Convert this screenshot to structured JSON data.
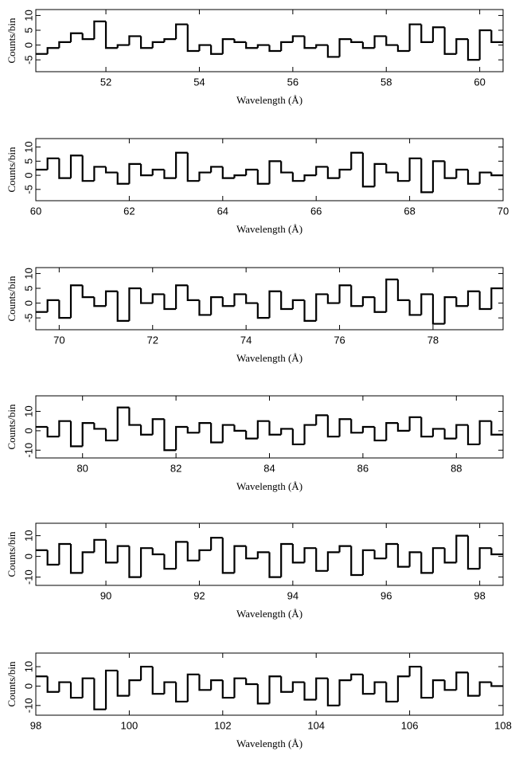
{
  "chart_data": [
    {
      "type": "histogram",
      "xlabel": "Wavelength (Å)",
      "ylabel": "Counts/bin",
      "xlim": [
        50.5,
        60.5
      ],
      "xticks": [
        52,
        54,
        56,
        58,
        60
      ],
      "ylim": [
        -9,
        12
      ],
      "yticks": [
        -5,
        0,
        5,
        10
      ],
      "color": "#000000",
      "bins": [
        50.5,
        50.75,
        51,
        51.25,
        51.5,
        51.75,
        52,
        52.25,
        52.5,
        52.75,
        53,
        53.25,
        53.5,
        53.75,
        54,
        54.25,
        54.5,
        54.75,
        55,
        55.25,
        55.5,
        55.75,
        56,
        56.25,
        56.5,
        56.75,
        57,
        57.25,
        57.5,
        57.75,
        58,
        58.25,
        58.5,
        58.75,
        59,
        59.25,
        59.5,
        59.75,
        60,
        60.25,
        60.5
      ],
      "values": [
        -3,
        -1,
        1,
        4,
        2,
        8,
        -1,
        0,
        3,
        -1,
        1,
        2,
        7,
        -2,
        0,
        -3,
        2,
        1,
        -1,
        0,
        -2,
        1,
        3,
        -1,
        0,
        -4,
        2,
        1,
        -1,
        3,
        0,
        -2,
        7,
        1,
        6,
        -3,
        2,
        -5,
        5,
        1
      ]
    },
    {
      "type": "histogram",
      "xlabel": "Wavelength (Å)",
      "ylabel": "Counts/bin",
      "xlim": [
        60,
        70
      ],
      "xticks": [
        60,
        62,
        64,
        66,
        68,
        70
      ],
      "ylim": [
        -9,
        13
      ],
      "yticks": [
        -5,
        0,
        5,
        10
      ],
      "color": "#000000",
      "bins": [
        60,
        60.25,
        60.5,
        60.75,
        61,
        61.25,
        61.5,
        61.75,
        62,
        62.25,
        62.5,
        62.75,
        63,
        63.25,
        63.5,
        63.75,
        64,
        64.25,
        64.5,
        64.75,
        65,
        65.25,
        65.5,
        65.75,
        66,
        66.25,
        66.5,
        66.75,
        67,
        67.25,
        67.5,
        67.75,
        68,
        68.25,
        68.5,
        68.75,
        69,
        69.25,
        69.5,
        69.75,
        70
      ],
      "values": [
        2,
        6,
        -1,
        7,
        -2,
        3,
        1,
        -3,
        4,
        0,
        2,
        -1,
        8,
        -2,
        1,
        3,
        -1,
        0,
        2,
        -3,
        5,
        1,
        -2,
        0,
        3,
        -1,
        2,
        8,
        -4,
        4,
        1,
        -2,
        6,
        -6,
        5,
        -1,
        2,
        -3,
        1,
        0
      ]
    },
    {
      "type": "histogram",
      "xlabel": "Wavelength (Å)",
      "ylabel": "Counts/bin",
      "xlim": [
        69.5,
        79.5
      ],
      "xticks": [
        70,
        72,
        74,
        76,
        78
      ],
      "ylim": [
        -9,
        12
      ],
      "yticks": [
        -5,
        0,
        5,
        10
      ],
      "color": "#000000",
      "bins": [
        69.5,
        69.75,
        70,
        70.25,
        70.5,
        70.75,
        71,
        71.25,
        71.5,
        71.75,
        72,
        72.25,
        72.5,
        72.75,
        73,
        73.25,
        73.5,
        73.75,
        74,
        74.25,
        74.5,
        74.75,
        75,
        75.25,
        75.5,
        75.75,
        76,
        76.25,
        76.5,
        76.75,
        77,
        77.25,
        77.5,
        77.75,
        78,
        78.25,
        78.5,
        78.75,
        79,
        79.25,
        79.5
      ],
      "values": [
        -3,
        1,
        -5,
        6,
        2,
        -1,
        4,
        -6,
        5,
        0,
        3,
        -2,
        6,
        1,
        -4,
        2,
        -1,
        3,
        0,
        -5,
        4,
        -2,
        1,
        -6,
        3,
        0,
        6,
        -1,
        2,
        -3,
        8,
        1,
        -4,
        3,
        -7,
        2,
        -1,
        4,
        -2,
        5
      ]
    },
    {
      "type": "histogram",
      "xlabel": "Wavelength (Å)",
      "ylabel": "Counts/bin",
      "xlim": [
        79,
        89
      ],
      "xticks": [
        80,
        82,
        84,
        86,
        88
      ],
      "ylim": [
        -14,
        18
      ],
      "yticks": [
        -10,
        0,
        10
      ],
      "color": "#000000",
      "bins": [
        79,
        79.25,
        79.5,
        79.75,
        80,
        80.25,
        80.5,
        80.75,
        81,
        81.25,
        81.5,
        81.75,
        82,
        82.25,
        82.5,
        82.75,
        83,
        83.25,
        83.5,
        83.75,
        84,
        84.25,
        84.5,
        84.75,
        85,
        85.25,
        85.5,
        85.75,
        86,
        86.25,
        86.5,
        86.75,
        87,
        87.25,
        87.5,
        87.75,
        88,
        88.25,
        88.5,
        88.75,
        89
      ],
      "values": [
        2,
        -3,
        5,
        -8,
        4,
        1,
        -5,
        12,
        3,
        -2,
        6,
        -10,
        2,
        -1,
        4,
        -6,
        3,
        0,
        -4,
        5,
        -2,
        1,
        -7,
        3,
        8,
        -3,
        6,
        -1,
        2,
        -5,
        4,
        0,
        7,
        -3,
        1,
        -4,
        3,
        -7,
        5,
        -2
      ]
    },
    {
      "type": "histogram",
      "xlabel": "Wavelength (Å)",
      "ylabel": "Counts/bin",
      "xlim": [
        88.5,
        98.5
      ],
      "xticks": [
        90,
        92,
        94,
        96,
        98
      ],
      "ylim": [
        -14,
        16
      ],
      "yticks": [
        -10,
        0,
        10
      ],
      "color": "#000000",
      "bins": [
        88.5,
        88.75,
        89,
        89.25,
        89.5,
        89.75,
        90,
        90.25,
        90.5,
        90.75,
        91,
        91.25,
        91.5,
        91.75,
        92,
        92.25,
        92.5,
        92.75,
        93,
        93.25,
        93.5,
        93.75,
        94,
        94.25,
        94.5,
        94.75,
        95,
        95.25,
        95.5,
        95.75,
        96,
        96.25,
        96.5,
        96.75,
        97,
        97.25,
        97.5,
        97.75,
        98,
        98.25,
        98.5
      ],
      "values": [
        3,
        -4,
        6,
        -8,
        2,
        8,
        -3,
        5,
        -10,
        4,
        1,
        -6,
        7,
        -2,
        3,
        9,
        -8,
        5,
        -1,
        2,
        -10,
        6,
        -3,
        4,
        -7,
        2,
        5,
        -9,
        3,
        -1,
        6,
        -5,
        2,
        -8,
        4,
        -3,
        10,
        -6,
        4,
        1
      ]
    },
    {
      "type": "histogram",
      "xlabel": "Wavelength (Å)",
      "ylabel": "Counts/bin",
      "xlim": [
        98,
        108
      ],
      "xticks": [
        98,
        100,
        102,
        104,
        106,
        108
      ],
      "ylim": [
        -15,
        17
      ],
      "yticks": [
        -10,
        0,
        10
      ],
      "color": "#000000",
      "bins": [
        98,
        98.25,
        98.5,
        98.75,
        99,
        99.25,
        99.5,
        99.75,
        100,
        100.25,
        100.5,
        100.75,
        101,
        101.25,
        101.5,
        101.75,
        102,
        102.25,
        102.5,
        102.75,
        103,
        103.25,
        103.5,
        103.75,
        104,
        104.25,
        104.5,
        104.75,
        105,
        105.25,
        105.5,
        105.75,
        106,
        106.25,
        106.5,
        106.75,
        107,
        107.25,
        107.5,
        107.75,
        108
      ],
      "values": [
        5,
        -3,
        2,
        -6,
        4,
        -12,
        8,
        -5,
        3,
        10,
        -4,
        2,
        -8,
        6,
        -2,
        3,
        -6,
        4,
        1,
        -9,
        5,
        -3,
        2,
        -7,
        4,
        -10,
        3,
        6,
        -4,
        2,
        -8,
        5,
        10,
        -6,
        3,
        -2,
        7,
        -5,
        2,
        0
      ]
    }
  ]
}
